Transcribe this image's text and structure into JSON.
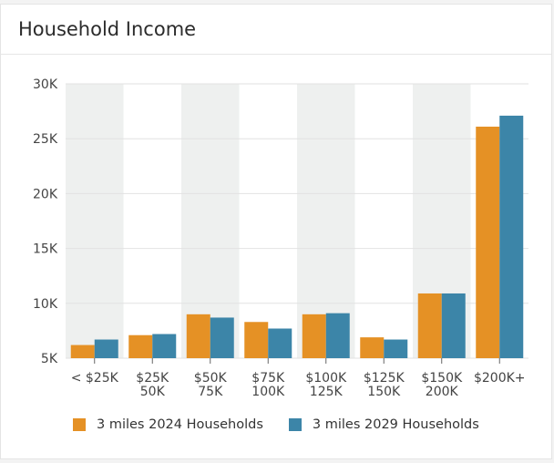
{
  "card": {
    "title": "Household Income"
  },
  "colors": {
    "series_2024": "#e59125",
    "series_2029": "#3c85a8",
    "band": "#eef0ef"
  },
  "chart_data": {
    "type": "bar",
    "title": "Household Income",
    "categories": [
      [
        "< $25K"
      ],
      [
        "$25K",
        "50K"
      ],
      [
        "$50K",
        "75K"
      ],
      [
        "$75K",
        "100K"
      ],
      [
        "$100K",
        "125K"
      ],
      [
        "$125K",
        "150K"
      ],
      [
        "$150K",
        "200K"
      ],
      [
        "$200K+"
      ]
    ],
    "series": [
      {
        "name": "3 miles 2024 Households",
        "values": [
          6200,
          7100,
          9000,
          8300,
          9000,
          6900,
          10900,
          26100
        ]
      },
      {
        "name": "3 miles 2029 Households",
        "values": [
          6700,
          7200,
          8700,
          7700,
          9100,
          6700,
          10900,
          27100
        ]
      }
    ],
    "ylim": [
      5000,
      30000
    ],
    "yticks": [
      "5K",
      "10K",
      "15K",
      "20K",
      "25K",
      "30K"
    ],
    "ytick_values": [
      5000,
      10000,
      15000,
      20000,
      25000,
      30000
    ],
    "grid": true,
    "alternating_bands": true,
    "legend": "bottom"
  }
}
